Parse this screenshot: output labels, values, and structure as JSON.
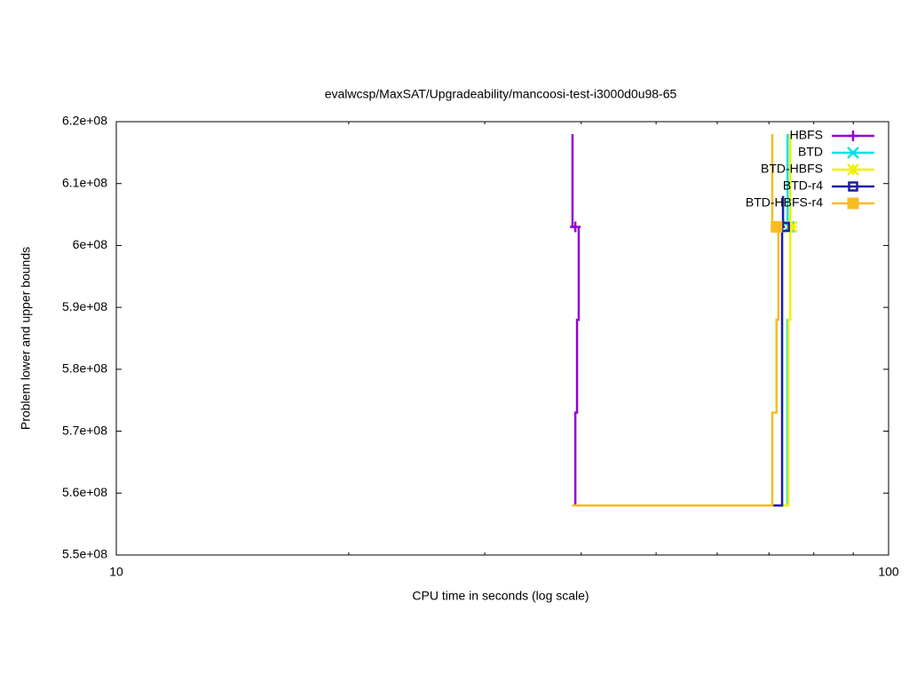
{
  "chart_data": {
    "type": "line",
    "title": "evalwcsp/MaxSAT/Upgradeability/mancoosi-test-i3000d0u98-65",
    "x_label": "CPU time in seconds (log scale)",
    "y_label": "Problem lower and upper bounds",
    "xscale": "log",
    "xlim": [
      10,
      100
    ],
    "xticks": [
      10,
      100
    ],
    "xminorticks": [
      20,
      30,
      40,
      50,
      60,
      70,
      80,
      90
    ],
    "ylim": [
      550000000,
      620000000
    ],
    "yticks": [
      {
        "value": 550000000,
        "label": "5.5e+08"
      },
      {
        "value": 560000000,
        "label": "5.6e+08"
      },
      {
        "value": 570000000,
        "label": "5.7e+08"
      },
      {
        "value": 580000000,
        "label": "5.8e+08"
      },
      {
        "value": 590000000,
        "label": "5.9e+08"
      },
      {
        "value": 600000000,
        "label": "6e+08"
      },
      {
        "value": 610000000,
        "label": "6.1e+08"
      },
      {
        "value": 620000000,
        "label": "6.2e+08"
      }
    ],
    "grid": false,
    "legend": "top-right",
    "series": [
      {
        "name": "HBFS",
        "color": "#9400d3",
        "point": "plus",
        "upper": {
          "x": [
            38.97,
            38.97,
            39.3
          ],
          "values": [
            618000000,
            603000000,
            603000000
          ]
        },
        "lower": {
          "x": [
            38.97,
            39.3,
            39.3,
            39.5,
            39.5,
            39.7,
            39.7
          ],
          "values": [
            558000000,
            558000000,
            573000000,
            573000000,
            588000000,
            588000000,
            603000000
          ]
        }
      },
      {
        "name": "BTD",
        "color": "#00e0e8",
        "point": "cross",
        "upper": {
          "x": [
            74.0,
            74.0,
            74.3
          ],
          "values": [
            618000000,
            603000000,
            603000000
          ]
        },
        "lower": {
          "x": [
            38.97,
            74.0,
            74.0,
            74.3
          ],
          "values": [
            558000000,
            558000000,
            588000000,
            588000000
          ]
        }
      },
      {
        "name": "BTD-HBFS",
        "color": "#f0f000",
        "point": "star",
        "upper": {
          "x": [
            74.6,
            74.6,
            74.9
          ],
          "values": [
            618000000,
            603000000,
            603000000
          ]
        },
        "lower": {
          "x": [
            38.97,
            74.2,
            74.2,
            74.6,
            74.6,
            74.9
          ],
          "values": [
            558000000,
            558000000,
            588000000,
            588000000,
            603000000,
            603000000
          ]
        }
      },
      {
        "name": "BTD-r4",
        "color": "#1c1ca8",
        "point": "square",
        "upper": {
          "x": [
            73.0,
            73.0,
            73.4
          ],
          "values": [
            608000000,
            603000000,
            603000000
          ]
        },
        "lower": {
          "x": [
            38.97,
            72.8,
            72.8,
            73.4
          ],
          "values": [
            558000000,
            558000000,
            603000000,
            603000000
          ]
        }
      },
      {
        "name": "BTD-HBFS-r4",
        "color": "#f8bb20",
        "point": "filled-square",
        "upper": {
          "x": [
            70.7,
            70.7,
            71.6
          ],
          "values": [
            618000000,
            603000000,
            603000000
          ]
        },
        "lower": {
          "x": [
            38.97,
            70.7,
            70.7,
            71.6,
            71.6,
            72.0,
            72.0
          ],
          "values": [
            558000000,
            558000000,
            573000000,
            573000000,
            588000000,
            588000000,
            603000000
          ]
        }
      }
    ]
  }
}
